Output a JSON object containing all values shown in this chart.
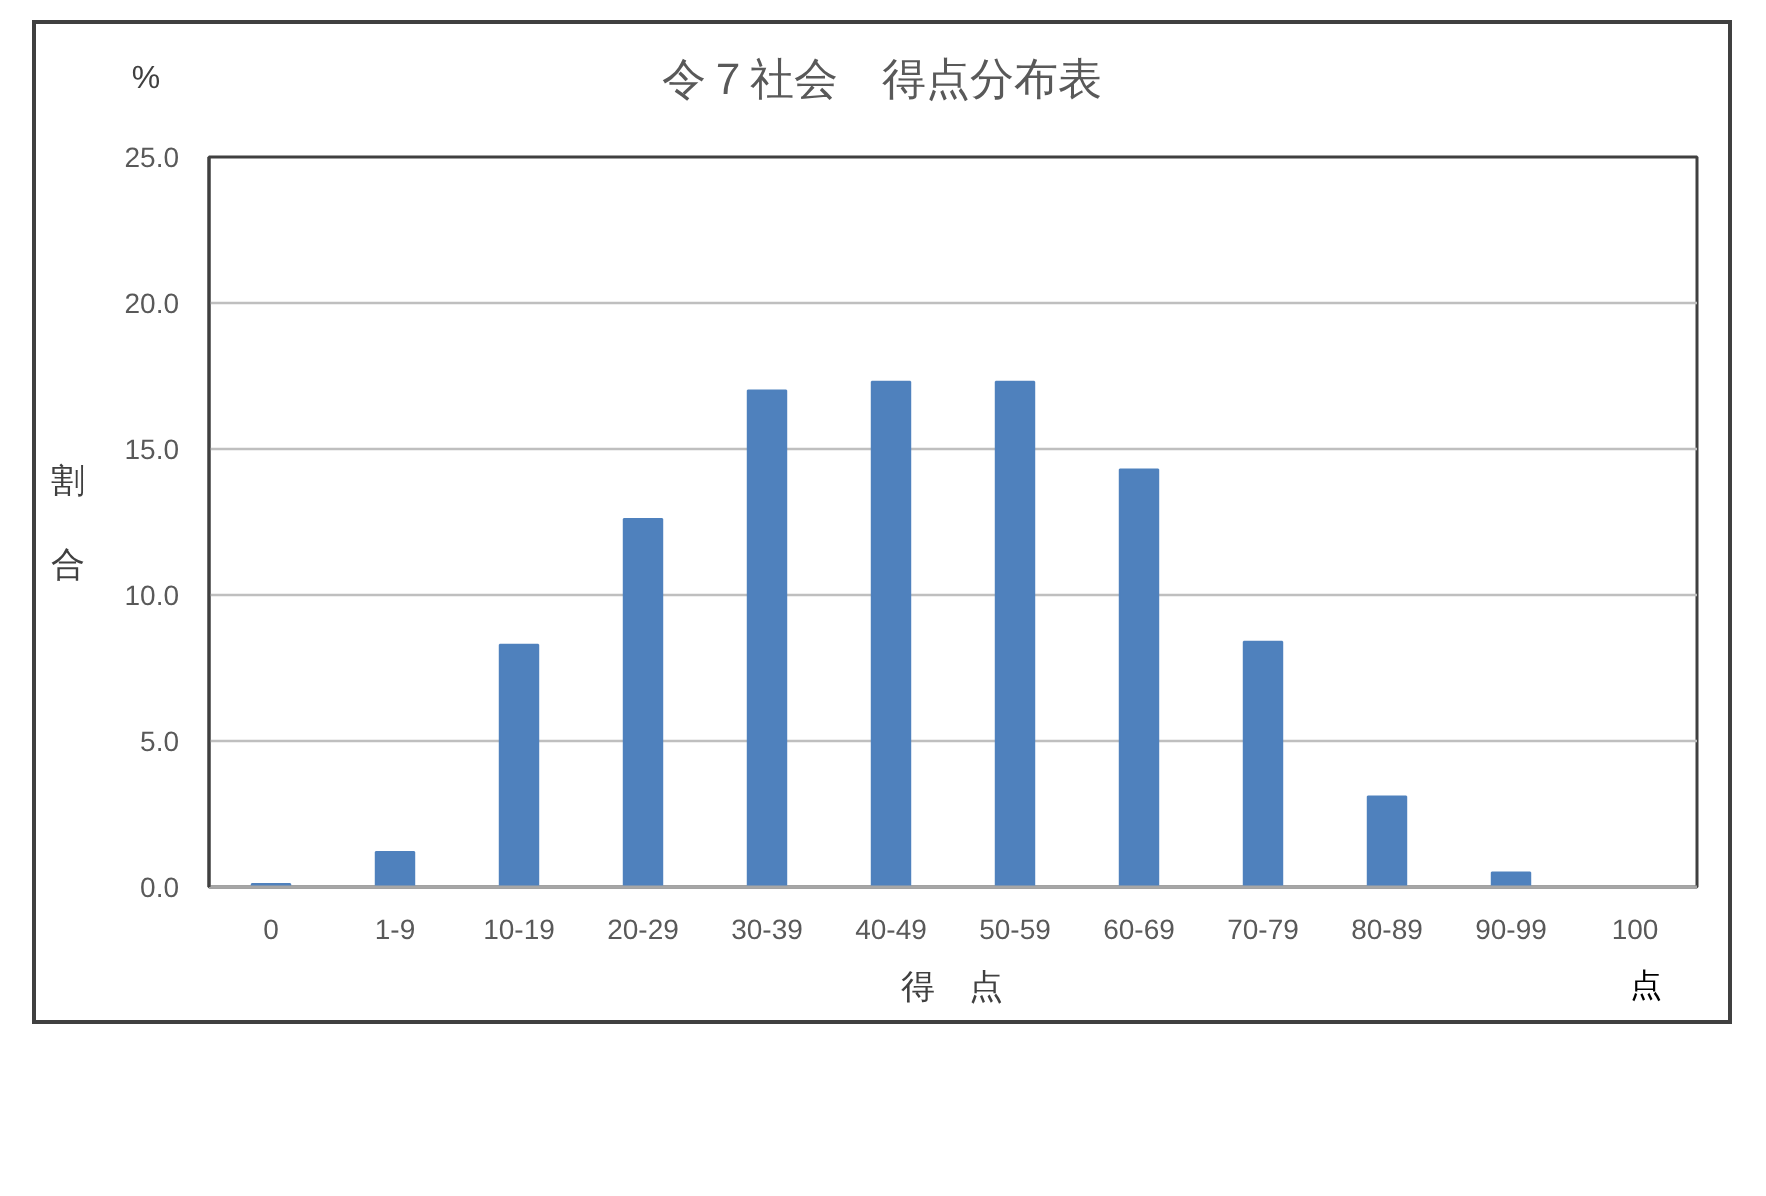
{
  "chart_data": {
    "type": "bar",
    "title": "令７社会　得点分布表",
    "xlabel": "得　点",
    "ylabel": "割合",
    "categories": [
      "0",
      "1-9",
      "10-19",
      "20-29",
      "30-39",
      "40-49",
      "50-59",
      "60-69",
      "70-79",
      "80-89",
      "90-99",
      "100"
    ],
    "values": [
      0.1,
      1.2,
      8.3,
      12.6,
      17.0,
      17.3,
      17.3,
      14.3,
      8.4,
      3.1,
      0.5,
      0.0
    ],
    "color": "#4f81bd",
    "ylim": [
      0,
      25
    ],
    "yticks": [
      {
        "value": 0,
        "label": "0.0"
      },
      {
        "value": 5,
        "label": "5.0"
      },
      {
        "value": 10,
        "label": "10.0"
      },
      {
        "value": 15,
        "label": "15.0"
      },
      {
        "value": 20,
        "label": "20.0"
      },
      {
        "value": 25,
        "label": "25.0"
      }
    ],
    "grid": "y",
    "annotations": [
      "%",
      "点"
    ]
  }
}
